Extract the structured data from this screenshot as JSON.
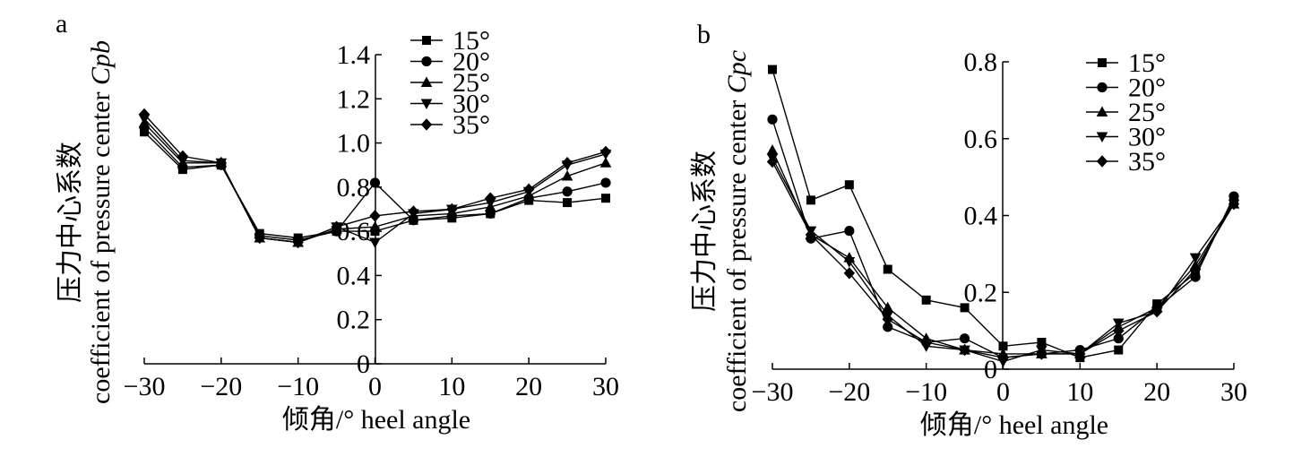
{
  "colors": {
    "ink": "#000000",
    "background": "#ffffff"
  },
  "shared": {
    "xlabel": "倾角/° heel angle",
    "xticks": [
      "−30",
      "−20",
      "−10",
      "0",
      "10",
      "20",
      "30"
    ],
    "xtick_values": [
      -30,
      -20,
      -10,
      0,
      10,
      20,
      30
    ],
    "legend": [
      "15°",
      "20°",
      "25°",
      "30°",
      "35°"
    ],
    "markers": [
      "square",
      "circle",
      "triangle-up",
      "triangle-down",
      "diamond"
    ]
  },
  "panels": [
    {
      "label": "a",
      "ylabel_cn": "压力中心系数",
      "ylabel_en": "coefficient of pressure center ",
      "ylabel_sym": "Cpb"
    },
    {
      "label": "b",
      "ylabel_cn": "压力中心系数",
      "ylabel_en": "coefficient of pressure center ",
      "ylabel_sym": "Cpc"
    }
  ],
  "chart_data": [
    {
      "type": "line",
      "panel": "a",
      "xlabel": "倾角/° heel angle",
      "ylabel": "压力中心系数 coefficient of pressure center Cpb",
      "xlim": [
        -30,
        30
      ],
      "ylim": [
        0,
        1.4
      ],
      "yticks": [
        "0",
        "0.2",
        "0.4",
        "0.6",
        "0.8",
        "1.0",
        "1.2",
        "1.4"
      ],
      "ytick_values": [
        0,
        0.2,
        0.4,
        0.6,
        0.8,
        1.0,
        1.2,
        1.4
      ],
      "x": [
        -30,
        -25,
        -20,
        -15,
        -10,
        -5,
        0,
        5,
        10,
        15,
        20,
        25,
        30
      ],
      "legend_position": "top-center",
      "series": [
        {
          "name": "15°",
          "marker": "square",
          "values": [
            1.05,
            0.88,
            0.9,
            0.59,
            0.57,
            0.6,
            0.6,
            0.65,
            0.66,
            0.68,
            0.74,
            0.73,
            0.75
          ]
        },
        {
          "name": "20°",
          "marker": "circle",
          "values": [
            1.07,
            0.89,
            0.9,
            0.58,
            0.56,
            0.6,
            0.82,
            0.65,
            0.67,
            0.68,
            0.75,
            0.78,
            0.82
          ]
        },
        {
          "name": "25°",
          "marker": "triangle-up",
          "values": [
            1.09,
            0.91,
            0.91,
            0.57,
            0.55,
            0.61,
            0.62,
            0.67,
            0.68,
            0.71,
            0.76,
            0.85,
            0.91
          ]
        },
        {
          "name": "30°",
          "marker": "triangle-down",
          "values": [
            1.11,
            0.92,
            0.91,
            0.57,
            0.55,
            0.62,
            0.55,
            0.68,
            0.7,
            0.73,
            0.78,
            0.9,
            0.95
          ]
        },
        {
          "name": "35°",
          "marker": "diamond",
          "values": [
            1.13,
            0.94,
            0.91,
            0.57,
            0.55,
            0.62,
            0.67,
            0.69,
            0.7,
            0.75,
            0.79,
            0.91,
            0.96
          ]
        }
      ]
    },
    {
      "type": "line",
      "panel": "b",
      "xlabel": "倾角/° heel angle",
      "ylabel": "压力中心系数 coefficient of pressure center Cpc",
      "xlim": [
        -30,
        30
      ],
      "ylim": [
        0,
        0.8
      ],
      "yticks": [
        "0",
        "0.2",
        "0.4",
        "0.6",
        "0.8"
      ],
      "ytick_values": [
        0,
        0.2,
        0.4,
        0.6,
        0.8
      ],
      "x": [
        -30,
        -25,
        -20,
        -15,
        -10,
        -5,
        0,
        5,
        10,
        15,
        20,
        25,
        30
      ],
      "legend_position": "top-right",
      "series": [
        {
          "name": "15°",
          "marker": "square",
          "values": [
            0.78,
            0.44,
            0.48,
            0.26,
            0.18,
            0.16,
            0.06,
            0.07,
            0.03,
            0.05,
            0.17,
            0.25,
            0.44
          ]
        },
        {
          "name": "20°",
          "marker": "circle",
          "values": [
            0.65,
            0.34,
            0.36,
            0.11,
            0.07,
            0.08,
            0.03,
            0.04,
            0.05,
            0.08,
            0.16,
            0.24,
            0.45
          ]
        },
        {
          "name": "25°",
          "marker": "triangle-up",
          "values": [
            0.57,
            0.35,
            0.29,
            0.16,
            0.08,
            0.05,
            0.04,
            0.04,
            0.04,
            0.11,
            0.16,
            0.27,
            0.43
          ]
        },
        {
          "name": "30°",
          "marker": "triangle-down",
          "values": [
            0.55,
            0.36,
            0.28,
            0.14,
            0.06,
            0.05,
            0.02,
            0.05,
            0.04,
            0.12,
            0.15,
            0.29,
            0.43
          ]
        },
        {
          "name": "35°",
          "marker": "diamond",
          "values": [
            0.54,
            0.35,
            0.25,
            0.13,
            0.07,
            0.05,
            0.03,
            0.04,
            0.04,
            0.1,
            0.15,
            0.26,
            0.43
          ]
        }
      ]
    }
  ]
}
